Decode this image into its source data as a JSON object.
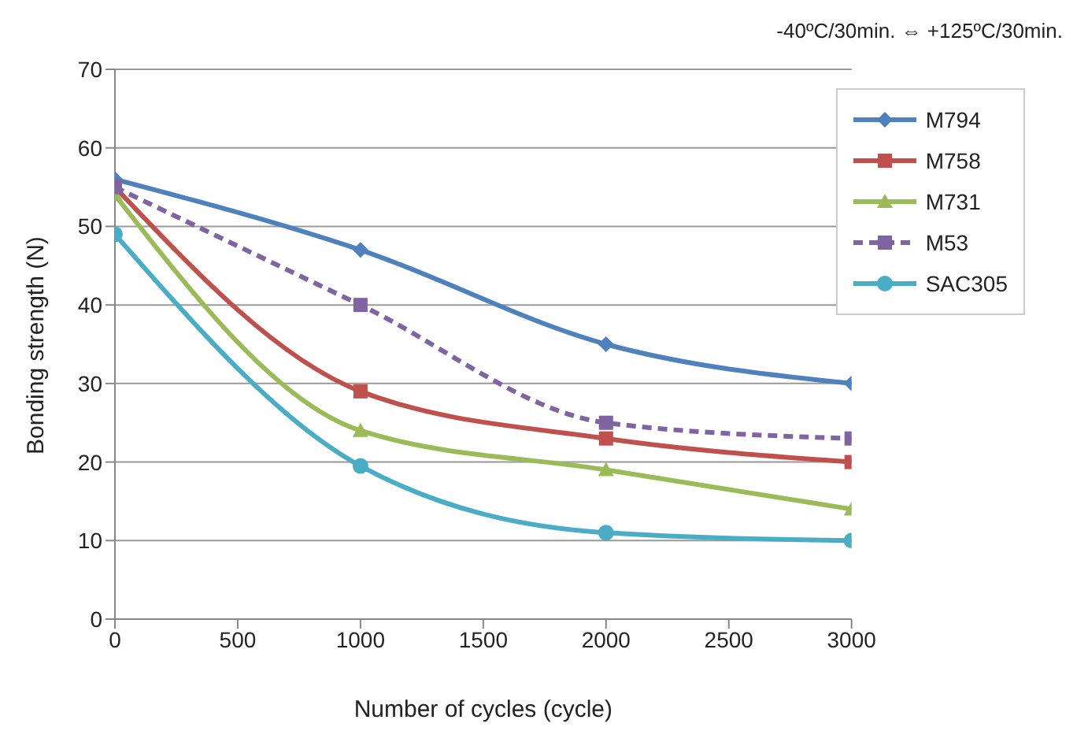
{
  "chart_data": {
    "type": "line",
    "xlabel": "Number of cycles (cycle)",
    "ylabel": "Bonding strength (N)",
    "annotations": [
      "-40ºC/30min. ⇔ +125ºC/30min."
    ],
    "x": [
      0,
      1000,
      2000,
      3000
    ],
    "series": [
      {
        "name": "M794",
        "color": "#4f81bd",
        "values": [
          56,
          47,
          35,
          30
        ],
        "marker": "diamond"
      },
      {
        "name": "M758",
        "color": "#c0504d",
        "values": [
          55,
          29,
          23,
          20
        ],
        "marker": "square"
      },
      {
        "name": "M731",
        "color": "#9bbb59",
        "values": [
          54,
          24,
          19,
          14
        ],
        "marker": "triangle"
      },
      {
        "name": "M53",
        "color": "#8064a2",
        "values": [
          55,
          40,
          25,
          23
        ],
        "marker": "square",
        "line_style": "dashed"
      },
      {
        "name": "SAC305",
        "color": "#4bacc6",
        "values": [
          49,
          19.5,
          11,
          10
        ],
        "marker": "circle"
      }
    ],
    "xlim": [
      0,
      3000
    ],
    "xticks": [
      0,
      500,
      1000,
      1500,
      2000,
      2500,
      3000
    ],
    "ylim": [
      0,
      70
    ],
    "yticks": [
      0,
      10,
      20,
      30,
      40,
      50,
      60,
      70
    ],
    "grid": "y",
    "legend": "top right"
  }
}
